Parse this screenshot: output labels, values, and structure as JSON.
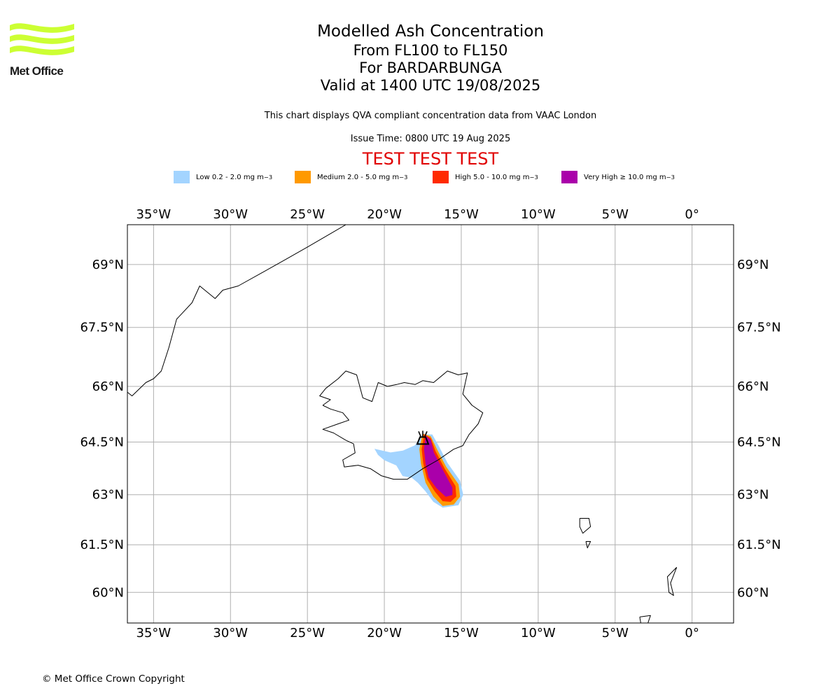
{
  "logo": {
    "text": "Met Office",
    "icon": "met-office-wave-logo",
    "color": "#ccff33"
  },
  "titles": {
    "main": "Modelled Ash Concentration",
    "levels": "From FL100 to FL150",
    "volcano": "For BARDARBUNGA",
    "valid": "Valid at 1400 UTC 19/08/2025"
  },
  "notes": {
    "description": "This chart displays QVA compliant concentration data from VAAC London",
    "issue_time": "Issue Time: 0800 UTC 19 Aug 2025"
  },
  "test_banner": "TEST TEST TEST",
  "legend": [
    {
      "label": "Low 0.2 - 2.0 mg m",
      "exp": "−3",
      "color": "#a3d4ff"
    },
    {
      "label": "Medium 2.0 - 5.0 mg m",
      "exp": "−3",
      "color": "#ff9900"
    },
    {
      "label": "High 5.0 - 10.0 mg m",
      "exp": "−3",
      "color": "#ff2a00"
    },
    {
      "label": "Very High  ≥  10.0 mg m",
      "exp": "−3",
      "color": "#aa00aa"
    }
  ],
  "map": {
    "lon_range": [
      -36.7,
      2.7
    ],
    "lat_range": [
      59.0,
      69.9
    ],
    "lon_ticks": [
      {
        "value": -35,
        "label": "35°W"
      },
      {
        "value": -30,
        "label": "30°W"
      },
      {
        "value": -25,
        "label": "25°W"
      },
      {
        "value": -20,
        "label": "20°W"
      },
      {
        "value": -15,
        "label": "15°W"
      },
      {
        "value": -10,
        "label": "10°W"
      },
      {
        "value": -5,
        "label": "5°W"
      },
      {
        "value": 0,
        "label": "0°"
      }
    ],
    "lat_ticks": [
      {
        "value": 60,
        "label": "60°N"
      },
      {
        "value": 61.5,
        "label": "61.5°N"
      },
      {
        "value": 63,
        "label": "63°N"
      },
      {
        "value": 64.5,
        "label": "64.5°N"
      },
      {
        "value": 66,
        "label": "66°N"
      },
      {
        "value": 67.5,
        "label": "67.5°N"
      },
      {
        "value": 69,
        "label": "69°N"
      }
    ],
    "volcano_marker": {
      "name": "volcano-icon",
      "lon": -17.5,
      "lat": 64.6
    },
    "ash_areas": {
      "low": [
        [
          -20.6,
          64.3
        ],
        [
          -19.6,
          64.2
        ],
        [
          -18.8,
          64.25
        ],
        [
          -18.0,
          64.4
        ],
        [
          -17.5,
          64.7
        ],
        [
          -16.9,
          64.7
        ],
        [
          -16.5,
          64.4
        ],
        [
          -15.9,
          63.9
        ],
        [
          -15.1,
          63.4
        ],
        [
          -14.9,
          63.0
        ],
        [
          -15.2,
          62.7
        ],
        [
          -16.2,
          62.63
        ],
        [
          -16.8,
          62.8
        ],
        [
          -17.3,
          63.1
        ],
        [
          -17.8,
          63.35
        ],
        [
          -18.2,
          63.5
        ],
        [
          -18.8,
          63.55
        ],
        [
          -19.2,
          63.85
        ],
        [
          -20.0,
          64.0
        ],
        [
          -20.4,
          64.15
        ],
        [
          -20.6,
          64.3
        ]
      ],
      "medium": [
        [
          -17.5,
          64.72
        ],
        [
          -17.0,
          64.65
        ],
        [
          -16.6,
          64.3
        ],
        [
          -16.0,
          63.8
        ],
        [
          -15.2,
          63.3
        ],
        [
          -15.1,
          62.95
        ],
        [
          -15.5,
          62.72
        ],
        [
          -16.2,
          62.68
        ],
        [
          -16.8,
          62.95
        ],
        [
          -17.3,
          63.35
        ],
        [
          -17.6,
          63.9
        ],
        [
          -17.7,
          64.3
        ],
        [
          -17.5,
          64.72
        ]
      ],
      "high": [
        [
          -17.4,
          64.7
        ],
        [
          -17.0,
          64.6
        ],
        [
          -16.7,
          64.25
        ],
        [
          -16.1,
          63.75
        ],
        [
          -15.4,
          63.25
        ],
        [
          -15.35,
          62.95
        ],
        [
          -15.7,
          62.8
        ],
        [
          -16.2,
          62.82
        ],
        [
          -16.7,
          63.1
        ],
        [
          -17.2,
          63.45
        ],
        [
          -17.45,
          63.9
        ],
        [
          -17.55,
          64.3
        ],
        [
          -17.4,
          64.7
        ]
      ],
      "very_high": [
        [
          -17.3,
          64.65
        ],
        [
          -17.0,
          64.55
        ],
        [
          -16.8,
          64.2
        ],
        [
          -16.2,
          63.7
        ],
        [
          -15.6,
          63.2
        ],
        [
          -15.6,
          63.0
        ],
        [
          -16.0,
          62.95
        ],
        [
          -16.6,
          63.2
        ],
        [
          -17.1,
          63.5
        ],
        [
          -17.3,
          63.9
        ],
        [
          -17.4,
          64.3
        ],
        [
          -17.3,
          64.65
        ]
      ]
    },
    "coastlines": [
      [
        [
          -36.7,
          65.85
        ],
        [
          -36.4,
          65.75
        ],
        [
          -35.5,
          66.1
        ],
        [
          -35.0,
          66.2
        ],
        [
          -34.5,
          66.4
        ],
        [
          -34.0,
          67.0
        ],
        [
          -33.5,
          67.7
        ],
        [
          -32.5,
          68.1
        ],
        [
          -32.0,
          68.5
        ],
        [
          -31.0,
          68.2
        ],
        [
          -30.5,
          68.4
        ],
        [
          -29.5,
          68.5
        ],
        [
          -28.0,
          68.8
        ],
        [
          -26.5,
          69.1
        ],
        [
          -25.0,
          69.4
        ],
        [
          -23.5,
          69.7
        ],
        [
          -22.5,
          69.9
        ]
      ],
      [
        [
          -24.0,
          65.5
        ],
        [
          -23.5,
          65.65
        ],
        [
          -24.2,
          65.75
        ],
        [
          -23.8,
          65.95
        ],
        [
          -23.0,
          66.2
        ],
        [
          -22.5,
          66.4
        ],
        [
          -21.8,
          66.3
        ],
        [
          -21.4,
          65.7
        ],
        [
          -20.8,
          65.6
        ],
        [
          -20.4,
          66.1
        ],
        [
          -19.8,
          66.0
        ],
        [
          -19.2,
          66.05
        ],
        [
          -18.7,
          66.1
        ],
        [
          -18.0,
          66.05
        ],
        [
          -17.5,
          66.15
        ],
        [
          -16.8,
          66.1
        ],
        [
          -15.9,
          66.4
        ],
        [
          -15.2,
          66.3
        ],
        [
          -14.6,
          66.35
        ],
        [
          -14.9,
          65.8
        ],
        [
          -14.3,
          65.5
        ],
        [
          -13.6,
          65.3
        ],
        [
          -13.9,
          65.0
        ],
        [
          -14.5,
          64.7
        ],
        [
          -14.9,
          64.4
        ],
        [
          -15.5,
          64.3
        ],
        [
          -16.5,
          64.0
        ],
        [
          -17.5,
          63.75
        ],
        [
          -18.5,
          63.45
        ],
        [
          -19.4,
          63.45
        ],
        [
          -20.2,
          63.55
        ],
        [
          -20.9,
          63.75
        ],
        [
          -21.7,
          63.85
        ],
        [
          -22.6,
          63.8
        ],
        [
          -22.7,
          64.0
        ],
        [
          -21.9,
          64.2
        ],
        [
          -22.0,
          64.45
        ],
        [
          -22.5,
          64.55
        ],
        [
          -23.3,
          64.75
        ],
        [
          -24.0,
          64.85
        ],
        [
          -23.0,
          65.0
        ],
        [
          -22.3,
          65.1
        ],
        [
          -22.7,
          65.3
        ],
        [
          -23.5,
          65.4
        ],
        [
          -24.0,
          65.5
        ]
      ],
      [
        [
          -7.3,
          62.3
        ],
        [
          -6.7,
          62.3
        ],
        [
          -6.6,
          62.05
        ],
        [
          -7.1,
          61.85
        ],
        [
          -7.3,
          62.05
        ],
        [
          -7.3,
          62.3
        ]
      ],
      [
        [
          -6.9,
          61.6
        ],
        [
          -6.6,
          61.6
        ],
        [
          -6.8,
          61.4
        ],
        [
          -6.9,
          61.6
        ]
      ],
      [
        [
          -1.0,
          60.8
        ],
        [
          -1.4,
          60.3
        ],
        [
          -1.2,
          59.9
        ],
        [
          -1.5,
          60.0
        ],
        [
          -1.6,
          60.5
        ],
        [
          -1.0,
          60.8
        ]
      ],
      [
        [
          -3.4,
          59.2
        ],
        [
          -2.7,
          59.25
        ],
        [
          -2.9,
          58.95
        ],
        [
          -3.3,
          58.9
        ],
        [
          -3.4,
          59.2
        ]
      ]
    ]
  }
}
